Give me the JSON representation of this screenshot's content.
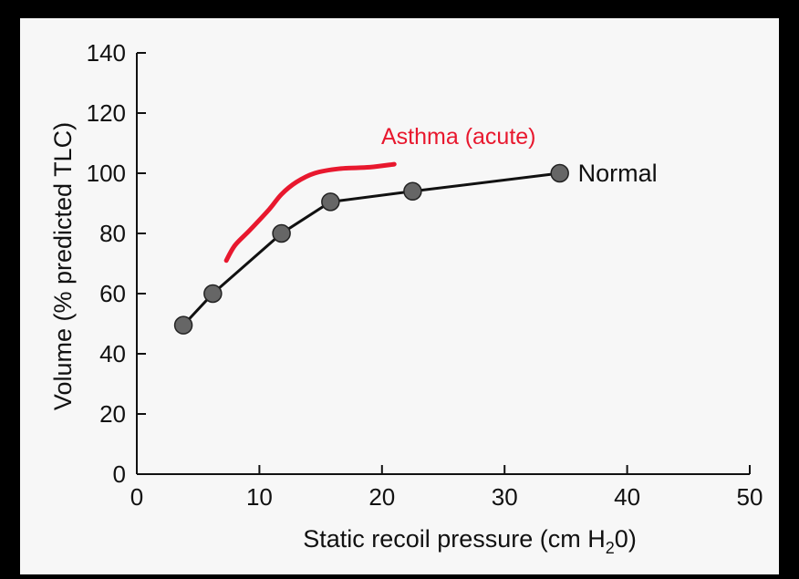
{
  "colors": {
    "frame": "#000000",
    "panel": "#f7f7f7",
    "normal_line": "#111111",
    "normal_marker": "#666666",
    "asthma": "#e8182e"
  },
  "chart_data": {
    "type": "line",
    "xlabel": {
      "prefix": "Static recoil pressure (cm H",
      "sub": "2",
      "suffix": "0)"
    },
    "ylabel": "Volume (% predicted TLC)",
    "xlim": [
      0,
      50
    ],
    "ylim": [
      0,
      140
    ],
    "xticks": [
      0,
      10,
      20,
      30,
      40,
      50
    ],
    "yticks": [
      0,
      20,
      40,
      60,
      80,
      100,
      120,
      140
    ],
    "grid": false,
    "series": [
      {
        "name": "Normal",
        "markers": true,
        "x": [
          3.8,
          6.2,
          11.8,
          15.8,
          22.5,
          34.5
        ],
        "y": [
          49.5,
          60,
          80,
          90.5,
          94,
          100
        ]
      },
      {
        "name": "Asthma (acute)",
        "markers": false,
        "x": [
          7.3,
          8,
          9.2,
          10.8,
          11.8,
          13,
          14.5,
          16.5,
          19,
          21
        ],
        "y": [
          71,
          76,
          81,
          88,
          93,
          97,
          100,
          101.5,
          102,
          103
        ]
      }
    ]
  }
}
